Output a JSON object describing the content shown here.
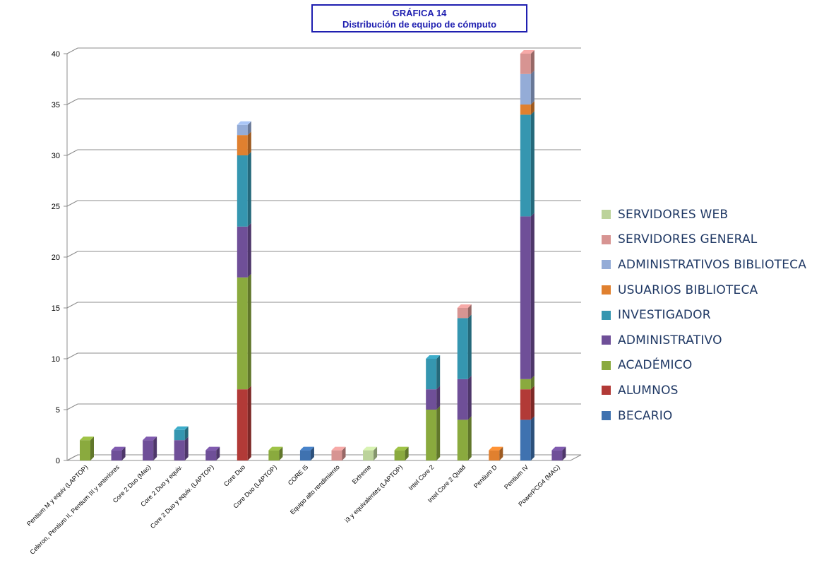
{
  "title": {
    "line1": "GRÁFICA 14",
    "line2": "Distribución de equipo de cómputo"
  },
  "chart_data": {
    "type": "bar",
    "stacked": true,
    "style": "3d",
    "ylim": [
      0,
      40
    ],
    "yticks": [
      0,
      5,
      10,
      15,
      20,
      25,
      30,
      35,
      40
    ],
    "grid": true,
    "legend_position": "right",
    "categories": [
      "Pentium M y equiv (LAPTOP)",
      "Celeron, Pentium II, Pentium III y anteriores",
      "Core 2 Duo  (Mac)",
      "Core 2 Duo y equiv.",
      "Core 2 Duo y equiv. (LAPTOP)",
      "Core Duo",
      "Core Duo (LAPTOP)",
      "CORE I5",
      "Equipo alto rendimiento",
      "Extreme",
      "i3 y equivalentes (LAPTOP)",
      "Intel Core 2",
      "Intel Core 2 Quad",
      "Pentium D",
      "Pentium IV",
      "PowerPCG4 (MAC)"
    ],
    "series": [
      {
        "name": "BECARIO",
        "color": "#3f72b0",
        "values": [
          0,
          0,
          0,
          0,
          0,
          0,
          0,
          1,
          0,
          0,
          0,
          0,
          0,
          0,
          4,
          0
        ]
      },
      {
        "name": "ALUMNOS",
        "color": "#b23a37",
        "values": [
          0,
          0,
          0,
          0,
          0,
          7,
          0,
          0,
          0,
          0,
          0,
          0,
          0,
          0,
          3,
          0
        ]
      },
      {
        "name": "ACADÉMICO",
        "color": "#8aaa3e",
        "values": [
          2,
          0,
          0,
          0,
          0,
          11,
          1,
          0,
          0,
          0,
          1,
          5,
          4,
          0,
          1,
          0
        ]
      },
      {
        "name": "ADMINISTRATIVO",
        "color": "#6f4f98",
        "values": [
          0,
          1,
          2,
          2,
          1,
          5,
          0,
          0,
          0,
          0,
          0,
          2,
          4,
          0,
          16,
          1
        ]
      },
      {
        "name": "INVESTIGADOR",
        "color": "#3596b0",
        "values": [
          0,
          0,
          0,
          1,
          0,
          7,
          0,
          0,
          0,
          0,
          0,
          3,
          6,
          0,
          10,
          0
        ]
      },
      {
        "name": "USUARIOS BIBLIOTECA",
        "color": "#e0802f",
        "values": [
          0,
          0,
          0,
          0,
          0,
          2,
          0,
          0,
          0,
          0,
          0,
          0,
          0,
          1,
          1,
          0
        ]
      },
      {
        "name": "ADMINISTRATIVOS BIBLIOTECA",
        "color": "#94acd7",
        "values": [
          0,
          0,
          0,
          0,
          0,
          1,
          0,
          0,
          0,
          0,
          0,
          0,
          0,
          0,
          3,
          0
        ]
      },
      {
        "name": "SERVIDORES GENERAL",
        "color": "#d79492",
        "values": [
          0,
          0,
          0,
          0,
          0,
          0,
          0,
          0,
          1,
          0,
          0,
          0,
          1,
          0,
          2,
          0
        ]
      },
      {
        "name": "SERVIDORES WEB",
        "color": "#bcd39b",
        "values": [
          0,
          0,
          0,
          0,
          0,
          0,
          0,
          0,
          0,
          1,
          0,
          0,
          0,
          0,
          0,
          0
        ]
      }
    ]
  }
}
